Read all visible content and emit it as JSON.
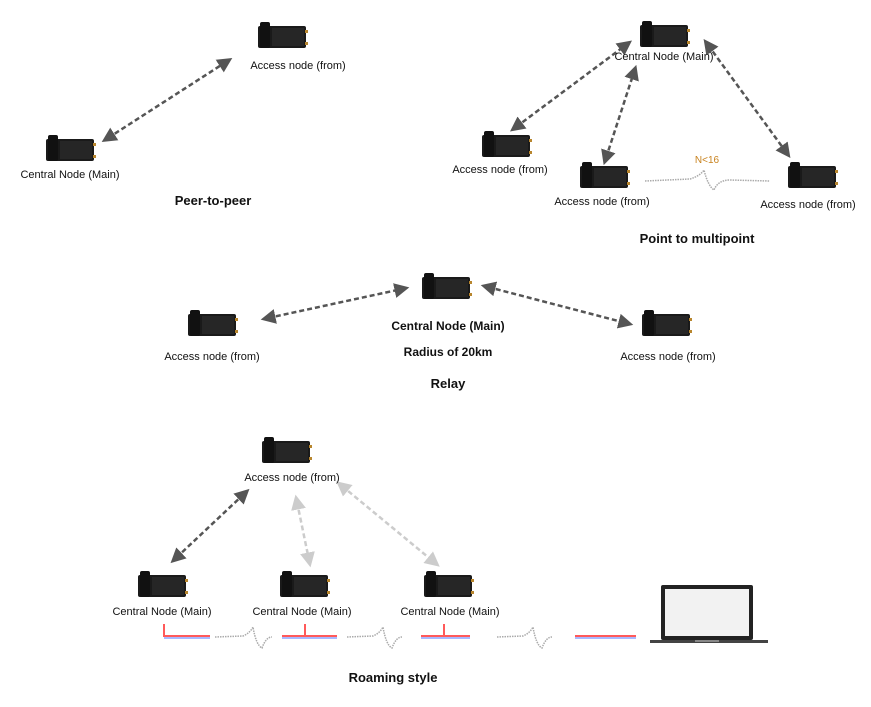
{
  "labels": {
    "access_node": "Access node (from)",
    "central_node": "Central Node (Main)"
  },
  "peer_to_peer": {
    "title": "Peer-to-peer"
  },
  "point_to_multipoint": {
    "title": "Point to multipoint",
    "node_limit": "N<16"
  },
  "relay": {
    "title": "Relay",
    "center_label": "Central Node (Main)",
    "radius": "Radius of 20km"
  },
  "roaming": {
    "title": "Roaming style"
  },
  "colors": {
    "device": "#1a1a1a",
    "link_active": "#555555",
    "link_inactive": "#cccccc",
    "cable_red": "#ff5a5a",
    "cable_blue": "#a9b8ff",
    "limit_text": "#c8821e"
  },
  "icons": [
    "radio-device-icon",
    "laptop-icon",
    "wireless-wave-icon",
    "double-arrow-icon"
  ]
}
